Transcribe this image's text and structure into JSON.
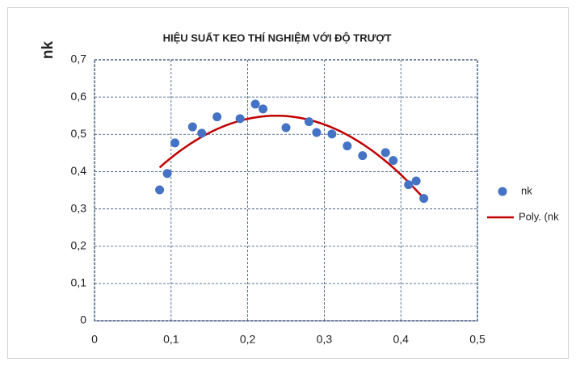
{
  "chart_data": {
    "type": "scatter",
    "title": "HIỆU SUẤT KEO THÍ NGHIỆM VỚI ĐỘ TRƯỢT",
    "ylabel": "nk",
    "series": [
      {
        "name": "nk",
        "color": "#4472c4",
        "x": [
          0.085,
          0.095,
          0.105,
          0.128,
          0.14,
          0.16,
          0.19,
          0.21,
          0.22,
          0.25,
          0.28,
          0.29,
          0.31,
          0.33,
          0.35,
          0.38,
          0.39,
          0.41,
          0.42,
          0.43
        ],
        "values": [
          0.351,
          0.395,
          0.477,
          0.52,
          0.503,
          0.547,
          0.542,
          0.581,
          0.568,
          0.518,
          0.534,
          0.505,
          0.501,
          0.469,
          0.443,
          0.451,
          0.43,
          0.365,
          0.375,
          0.328
        ]
      }
    ],
    "trendline": {
      "name": "Poly. (nk",
      "color": "#c00000",
      "order": 2
    },
    "xlim": [
      0,
      0.5
    ],
    "xticks": [
      0,
      {
        "value": 0.1,
        "label": "0,1"
      },
      {
        "value": 0.2,
        "label": "0,2"
      },
      {
        "value": 0.3,
        "label": "0,3"
      },
      {
        "value": 0.4,
        "label": "0,4"
      },
      {
        "value": 0.5,
        "label": "0,5"
      }
    ],
    "ylim": [
      0,
      0.7
    ],
    "yticks": [
      0,
      {
        "value": 0.1,
        "label": "0,1"
      },
      {
        "value": 0.2,
        "label": "0,2"
      },
      {
        "value": 0.3,
        "label": "0,3"
      },
      {
        "value": 0.4,
        "label": "0,4"
      },
      {
        "value": 0.5,
        "label": "0,5"
      },
      {
        "value": 0.6,
        "label": "0,6"
      },
      {
        "value": 0.7,
        "label": "0,7"
      }
    ],
    "grid": true,
    "legend": "right"
  }
}
